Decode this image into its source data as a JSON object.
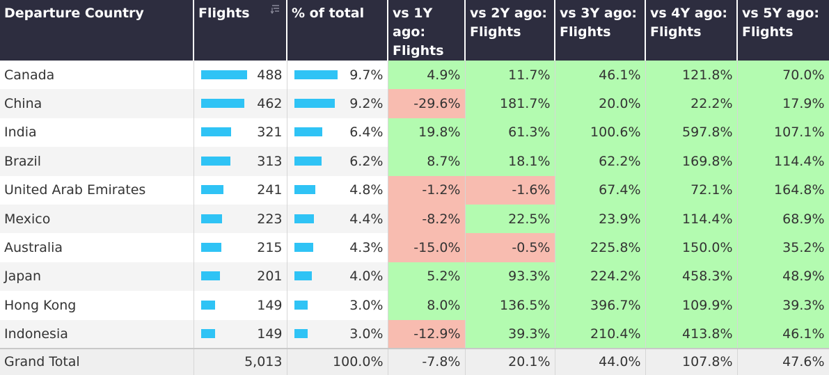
{
  "headers": [
    "Departure Country",
    "Flights",
    "% of total",
    "vs 1Y ago: Flights",
    "vs 2Y ago: Flights",
    "vs 3Y ago: Flights",
    "vs 4Y ago: Flights",
    "vs 5Y ago: Flights"
  ],
  "bar_color": "#2fc3f5",
  "positive_color": "#b3fbb0",
  "negative_color": "#f8bcb0",
  "rows": [
    {
      "country": "Canada",
      "flights": "488",
      "flights_value": 488,
      "pct": "9.7%",
      "pct_value": 9.7,
      "y1": "4.9%",
      "y2": "11.7%",
      "y3": "46.1%",
      "y4": "121.8%",
      "y5": "70.0%"
    },
    {
      "country": "China",
      "flights": "462",
      "flights_value": 462,
      "pct": "9.2%",
      "pct_value": 9.2,
      "y1": "-29.6%",
      "y2": "181.7%",
      "y3": "20.0%",
      "y4": "22.2%",
      "y5": "17.9%"
    },
    {
      "country": "India",
      "flights": "321",
      "flights_value": 321,
      "pct": "6.4%",
      "pct_value": 6.4,
      "y1": "19.8%",
      "y2": "61.3%",
      "y3": "100.6%",
      "y4": "597.8%",
      "y5": "107.1%"
    },
    {
      "country": "Brazil",
      "flights": "313",
      "flights_value": 313,
      "pct": "6.2%",
      "pct_value": 6.2,
      "y1": "8.7%",
      "y2": "18.1%",
      "y3": "62.2%",
      "y4": "169.8%",
      "y5": "114.4%"
    },
    {
      "country": "United Arab Emirates",
      "flights": "241",
      "flights_value": 241,
      "pct": "4.8%",
      "pct_value": 4.8,
      "y1": "-1.2%",
      "y2": "-1.6%",
      "y3": "67.4%",
      "y4": "72.1%",
      "y5": "164.8%"
    },
    {
      "country": "Mexico",
      "flights": "223",
      "flights_value": 223,
      "pct": "4.4%",
      "pct_value": 4.4,
      "y1": "-8.2%",
      "y2": "22.5%",
      "y3": "23.9%",
      "y4": "114.4%",
      "y5": "68.9%"
    },
    {
      "country": "Australia",
      "flights": "215",
      "flights_value": 215,
      "pct": "4.3%",
      "pct_value": 4.3,
      "y1": "-15.0%",
      "y2": "-0.5%",
      "y3": "225.8%",
      "y4": "150.0%",
      "y5": "35.2%"
    },
    {
      "country": "Japan",
      "flights": "201",
      "flights_value": 201,
      "pct": "4.0%",
      "pct_value": 4.0,
      "y1": "5.2%",
      "y2": "93.3%",
      "y3": "224.2%",
      "y4": "458.3%",
      "y5": "48.9%"
    },
    {
      "country": "Hong Kong",
      "flights": "149",
      "flights_value": 149,
      "pct": "3.0%",
      "pct_value": 3.0,
      "y1": "8.0%",
      "y2": "136.5%",
      "y3": "396.7%",
      "y4": "109.9%",
      "y5": "39.3%"
    },
    {
      "country": "Indonesia",
      "flights": "149",
      "flights_value": 149,
      "pct": "3.0%",
      "pct_value": 3.0,
      "y1": "-12.9%",
      "y2": "39.3%",
      "y3": "210.4%",
      "y4": "413.8%",
      "y5": "46.1%"
    }
  ],
  "total": {
    "label": "Grand Total",
    "flights": "5,013",
    "pct": "100.0%",
    "y1": "-7.8%",
    "y2": "20.1%",
    "y3": "44.0%",
    "y4": "107.8%",
    "y5": "47.6%"
  },
  "sort_icon": "sort-descending-icon"
}
